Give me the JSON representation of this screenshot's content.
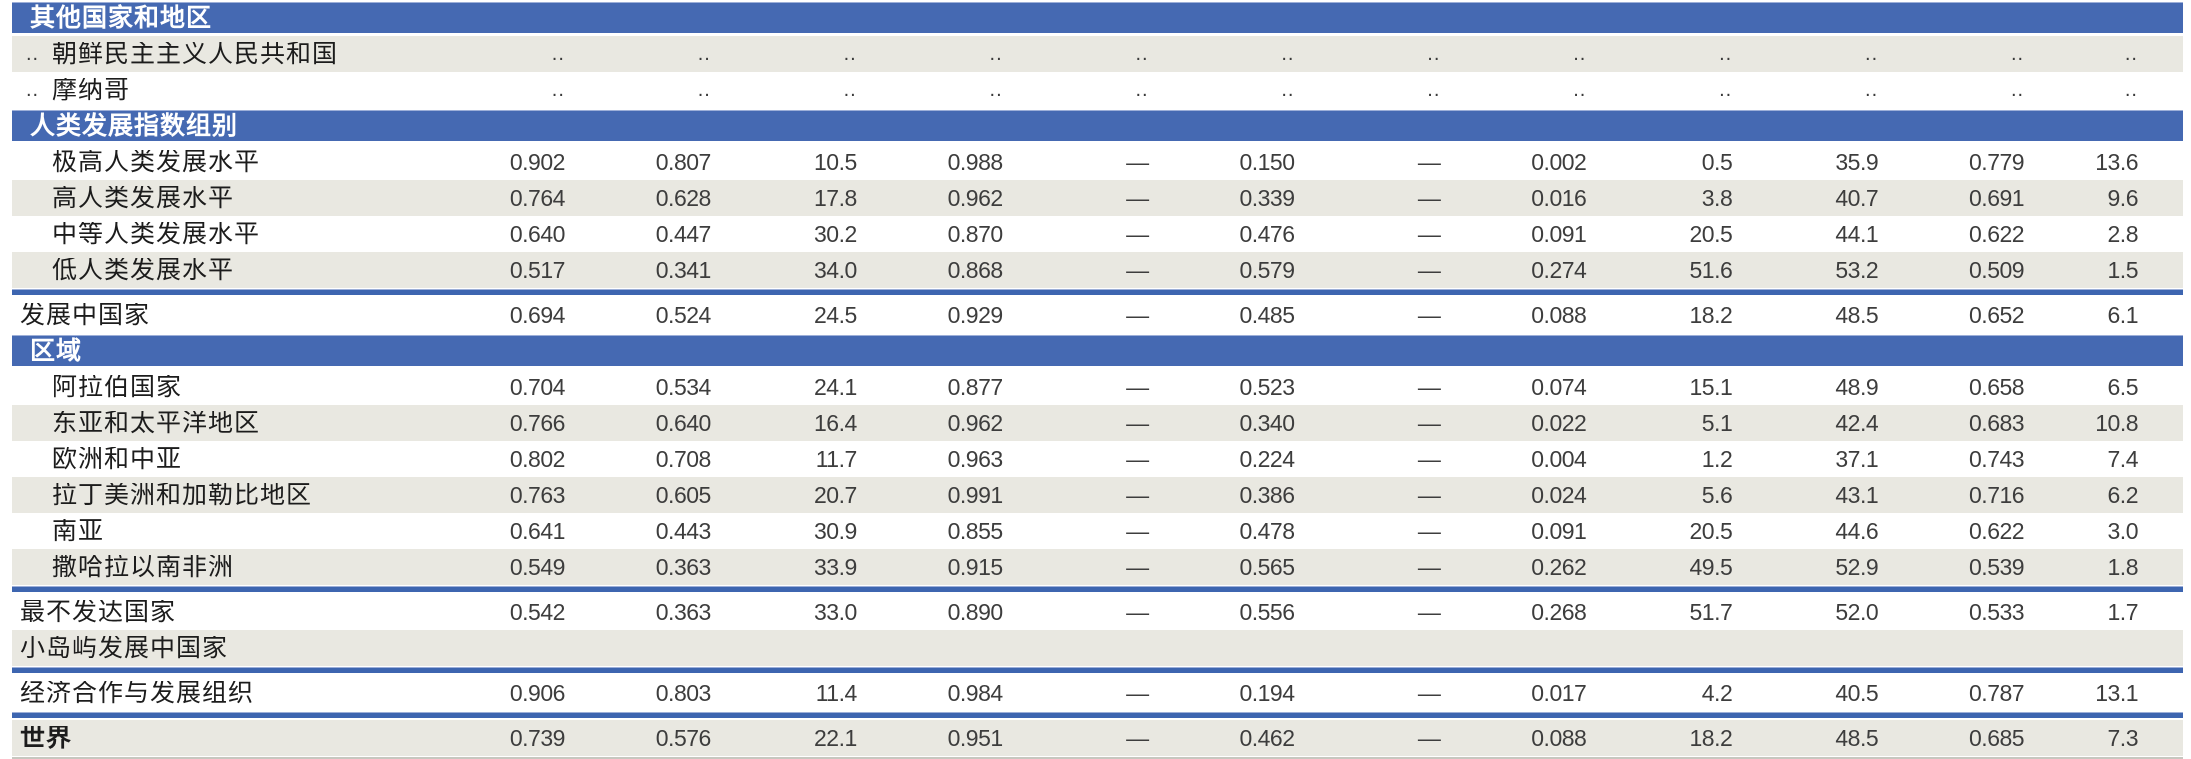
{
  "colors": {
    "header_blue": "#4569b2",
    "divider_blue": "#3d65b0",
    "shaded_row": "#e9e8e1",
    "label_text": "#1c1c1c",
    "number_text": "#3d3d3d",
    "header_text": "#ffffff",
    "bottom_rule": "#c7c7bf"
  },
  "table": {
    "num_value_columns": 12,
    "no_data_symbol": "..",
    "not_applicable_symbol": "—",
    "rows": [
      {
        "type": "section",
        "label": "其他国家和地区"
      },
      {
        "type": "data",
        "rank": "..",
        "label": "朝鲜民主主义人民共和国",
        "indent": true,
        "shaded": true,
        "values": [
          "..",
          "..",
          "..",
          "..",
          "..",
          "..",
          "..",
          "..",
          "..",
          "..",
          "..",
          ".."
        ]
      },
      {
        "type": "data",
        "rank": "..",
        "label": "摩纳哥",
        "indent": true,
        "shaded": false,
        "values": [
          "..",
          "..",
          "..",
          "..",
          "..",
          "..",
          "..",
          "..",
          "..",
          "..",
          "..",
          ".."
        ]
      },
      {
        "type": "section",
        "label": "人类发展指数组别"
      },
      {
        "type": "data",
        "label": "极高人类发展水平",
        "indent": true,
        "shaded": false,
        "values": [
          "0.902",
          "0.807",
          "10.5",
          "0.988",
          "—",
          "0.150",
          "—",
          "0.002",
          "0.5",
          "35.9",
          "0.779",
          "13.6"
        ]
      },
      {
        "type": "data",
        "label": "高人类发展水平",
        "indent": true,
        "shaded": true,
        "values": [
          "0.764",
          "0.628",
          "17.8",
          "0.962",
          "—",
          "0.339",
          "—",
          "0.016",
          "3.8",
          "40.7",
          "0.691",
          "9.6"
        ]
      },
      {
        "type": "data",
        "label": "中等人类发展水平",
        "indent": true,
        "shaded": false,
        "values": [
          "0.640",
          "0.447",
          "30.2",
          "0.870",
          "—",
          "0.476",
          "—",
          "0.091",
          "20.5",
          "44.1",
          "0.622",
          "2.8"
        ]
      },
      {
        "type": "data",
        "label": "低人类发展水平",
        "indent": true,
        "shaded": true,
        "separator_after": true,
        "values": [
          "0.517",
          "0.341",
          "34.0",
          "0.868",
          "—",
          "0.579",
          "—",
          "0.274",
          "51.6",
          "53.2",
          "0.509",
          "1.5"
        ]
      },
      {
        "type": "data",
        "label": "发展中国家",
        "indent": false,
        "shaded": false,
        "values": [
          "0.694",
          "0.524",
          "24.5",
          "0.929",
          "—",
          "0.485",
          "—",
          "0.088",
          "18.2",
          "48.5",
          "0.652",
          "6.1"
        ]
      },
      {
        "type": "section",
        "label": "区域"
      },
      {
        "type": "data",
        "label": "阿拉伯国家",
        "indent": true,
        "shaded": false,
        "values": [
          "0.704",
          "0.534",
          "24.1",
          "0.877",
          "—",
          "0.523",
          "—",
          "0.074",
          "15.1",
          "48.9",
          "0.658",
          "6.5"
        ]
      },
      {
        "type": "data",
        "label": "东亚和太平洋地区",
        "indent": true,
        "shaded": true,
        "values": [
          "0.766",
          "0.640",
          "16.4",
          "0.962",
          "—",
          "0.340",
          "—",
          "0.022",
          "5.1",
          "42.4",
          "0.683",
          "10.8"
        ]
      },
      {
        "type": "data",
        "label": "欧洲和中亚",
        "indent": true,
        "shaded": false,
        "values": [
          "0.802",
          "0.708",
          "11.7",
          "0.963",
          "—",
          "0.224",
          "—",
          "0.004",
          "1.2",
          "37.1",
          "0.743",
          "7.4"
        ]
      },
      {
        "type": "data",
        "label": "拉丁美洲和加勒比地区",
        "indent": true,
        "shaded": true,
        "values": [
          "0.763",
          "0.605",
          "20.7",
          "0.991",
          "—",
          "0.386",
          "—",
          "0.024",
          "5.6",
          "43.1",
          "0.716",
          "6.2"
        ]
      },
      {
        "type": "data",
        "label": "南亚",
        "indent": true,
        "shaded": false,
        "values": [
          "0.641",
          "0.443",
          "30.9",
          "0.855",
          "—",
          "0.478",
          "—",
          "0.091",
          "20.5",
          "44.6",
          "0.622",
          "3.0"
        ]
      },
      {
        "type": "data",
        "label": "撒哈拉以南非洲",
        "indent": true,
        "shaded": true,
        "separator_after": true,
        "values": [
          "0.549",
          "0.363",
          "33.9",
          "0.915",
          "—",
          "0.565",
          "—",
          "0.262",
          "49.5",
          "52.9",
          "0.539",
          "1.8"
        ]
      },
      {
        "type": "data",
        "label": "最不发达国家",
        "indent": false,
        "shaded": false,
        "values": [
          "0.542",
          "0.363",
          "33.0",
          "0.890",
          "—",
          "0.556",
          "—",
          "0.268",
          "51.7",
          "52.0",
          "0.533",
          "1.7"
        ]
      },
      {
        "type": "data",
        "label": "小岛屿发展中国家",
        "indent": false,
        "shaded": true,
        "separator_after": true,
        "values": [
          "",
          "",
          "",
          "",
          "",
          "",
          "",
          "",
          "",
          "",
          "",
          ""
        ]
      },
      {
        "type": "data",
        "label": "经济合作与发展组织",
        "indent": false,
        "shaded": false,
        "separator_after": true,
        "values": [
          "0.906",
          "0.803",
          "11.4",
          "0.984",
          "—",
          "0.194",
          "—",
          "0.017",
          "4.2",
          "40.5",
          "0.787",
          "13.1"
        ]
      },
      {
        "type": "data",
        "label": "世界",
        "indent": false,
        "shaded": true,
        "bold": true,
        "values": [
          "0.739",
          "0.576",
          "22.1",
          "0.951",
          "—",
          "0.462",
          "—",
          "0.088",
          "18.2",
          "48.5",
          "0.685",
          "7.3"
        ]
      }
    ]
  }
}
